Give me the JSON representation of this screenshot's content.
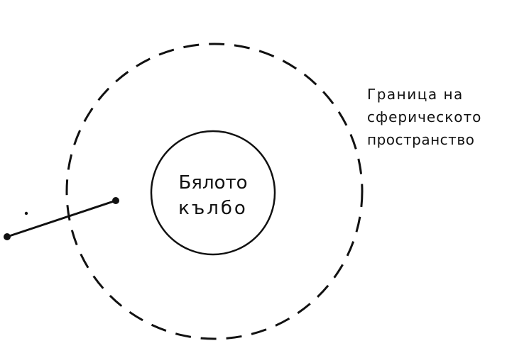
{
  "diagram": {
    "inner_label": {
      "line1": "Бялото",
      "line2": "кълбо"
    },
    "boundary_label": {
      "line1": "Граница на",
      "line2": "сферическото",
      "line3": "пространство"
    }
  }
}
